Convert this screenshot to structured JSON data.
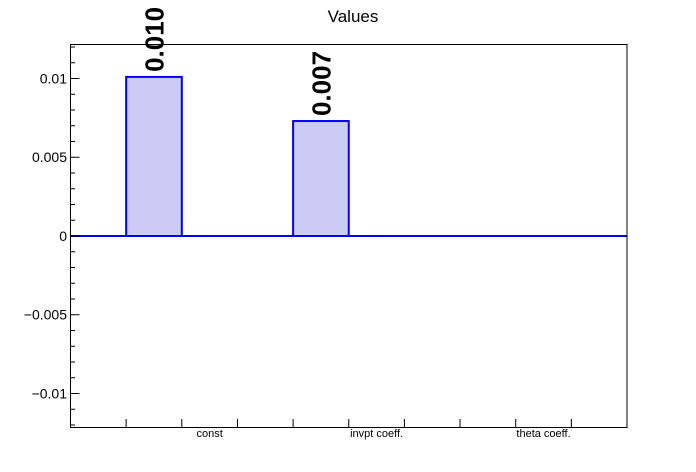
{
  "chart_data": {
    "type": "bar",
    "title": "Values",
    "categories": [
      "const",
      "invpt coeff.",
      "theta coeff."
    ],
    "values": [
      0.0101,
      0.0073,
      0
    ],
    "bar_labels": [
      "0.010",
      "0.007",
      ""
    ],
    "xlabel": "",
    "ylabel": "",
    "n_bins": 10,
    "bar_bins": [
      2,
      5,
      8
    ],
    "label_bins": [
      3,
      6,
      9
    ],
    "ylim": [
      -0.0122,
      0.0122
    ],
    "y_major_ticks": [
      -0.01,
      -0.005,
      0,
      0.005,
      0.01
    ],
    "y_tick_labels": [
      "−0.01",
      "−0.005",
      "0",
      "0.005",
      "0.01"
    ],
    "y_minor_step": 0.001,
    "grid": false,
    "zero_line": true,
    "legend": null,
    "colors": {
      "bar_fill": "#cbcbf6",
      "bar_edge": "#0202f0",
      "zero_line": "#0202f0",
      "axis": "#000000",
      "text": "#000000",
      "background": "#ffffff"
    }
  }
}
